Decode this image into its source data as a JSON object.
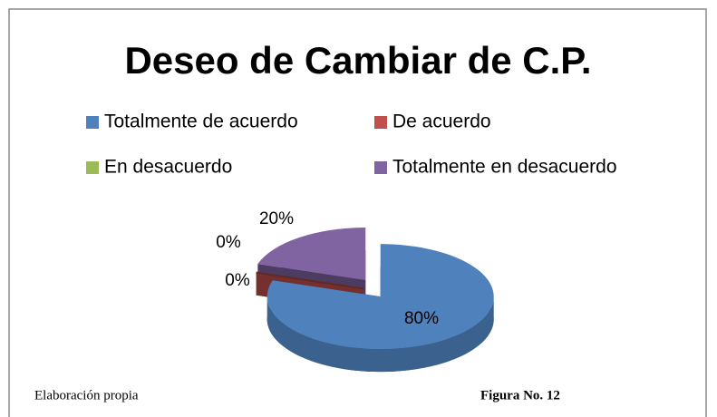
{
  "chart_data": {
    "type": "pie",
    "title": "Deseo de Cambiar de C.P.",
    "categories": [
      "Totalmente de acuerdo",
      "De acuerdo",
      "En desacuerdo",
      "Totalmente en desacuerdo"
    ],
    "values": [
      80,
      0,
      0,
      20
    ],
    "value_labels": [
      "80%",
      "0%",
      "0%",
      "20%"
    ],
    "colors": [
      "#4f81bd",
      "#c0504d",
      "#9bbb59",
      "#8064a2"
    ],
    "legend": "top",
    "source": "Elaboración propia",
    "figure": "Figura No. 12"
  }
}
